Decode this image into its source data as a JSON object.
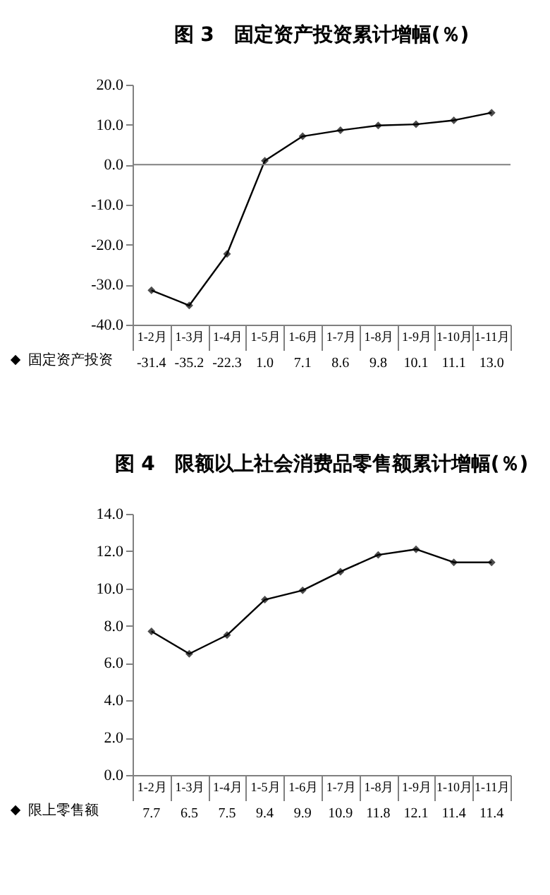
{
  "chart_data": [
    {
      "type": "line",
      "title": "图 3　固定资产投资累计增幅(％)",
      "categories": [
        "1-2月",
        "1-3月",
        "1-4月",
        "1-5月",
        "1-6月",
        "1-7月",
        "1-8月",
        "1-9月",
        "1-10月",
        "1-11月"
      ],
      "series": [
        {
          "name": "固定资产投资",
          "color": "#000000",
          "values": [
            -31.4,
            -35.2,
            -22.3,
            1.0,
            7.1,
            8.6,
            9.8,
            10.1,
            11.1,
            13.0
          ],
          "value_labels": [
            "-31.4",
            "-35.2",
            "-22.3",
            "1.0",
            "7.1",
            "8.6",
            "9.8",
            "10.1",
            "11.1",
            "13.0"
          ]
        }
      ],
      "ylim": [
        -40,
        20
      ],
      "yticks": [
        {
          "value": -40,
          "label": "-40.0"
        },
        {
          "value": -30,
          "label": "-30.0"
        },
        {
          "value": -20,
          "label": "-20.0"
        },
        {
          "value": -10,
          "label": "-10.0"
        },
        {
          "value": 0,
          "label": "0.0"
        },
        {
          "value": 10,
          "label": "10.0"
        },
        {
          "value": 20,
          "label": "20.0"
        }
      ],
      "ref_lines": [
        {
          "axis": "y",
          "value": 0,
          "color": "#808080"
        }
      ],
      "marker": "diamond",
      "legend": "bottom left"
    },
    {
      "type": "line",
      "title": "图 4　限额以上社会消费品零售额累计增幅(％)",
      "categories": [
        "1-2月",
        "1-3月",
        "1-4月",
        "1-5月",
        "1-6月",
        "1-7月",
        "1-8月",
        "1-9月",
        "1-10月",
        "1-11月"
      ],
      "series": [
        {
          "name": "限上零售额",
          "color": "#000000",
          "values": [
            7.7,
            6.5,
            7.5,
            9.4,
            9.9,
            10.9,
            11.8,
            12.1,
            11.4,
            11.4
          ],
          "value_labels": [
            "7.7",
            "6.5",
            "7.5",
            "9.4",
            "9.9",
            "10.9",
            "11.8",
            "12.1",
            "11.4",
            "11.4"
          ]
        }
      ],
      "ylim": [
        0,
        14
      ],
      "yticks": [
        {
          "value": 0,
          "label": "0.0"
        },
        {
          "value": 2,
          "label": "2.0"
        },
        {
          "value": 4,
          "label": "4.0"
        },
        {
          "value": 6,
          "label": "6.0"
        },
        {
          "value": 8,
          "label": "8.0"
        },
        {
          "value": 10,
          "label": "10.0"
        },
        {
          "value": 12,
          "label": "12.0"
        },
        {
          "value": 14,
          "label": "14.0"
        }
      ],
      "marker": "diamond",
      "legend": "bottom left"
    }
  ]
}
